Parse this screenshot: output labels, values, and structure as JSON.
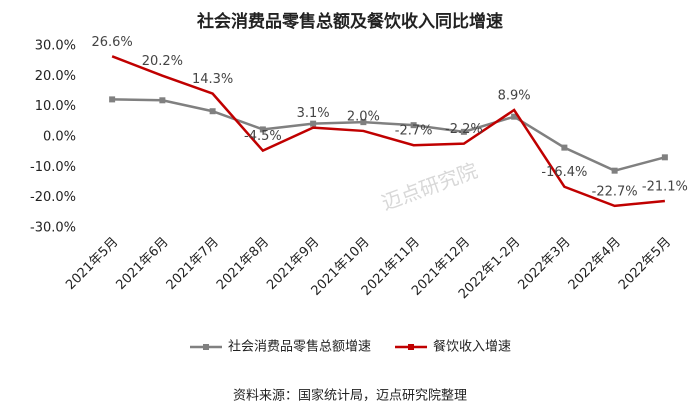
{
  "chart_data": {
    "type": "line",
    "title": "社会消费品零售总额及餐饮收入同比增速",
    "watermark": "迈点研究院",
    "source": "资料来源：国家统计局，迈点研究院整理",
    "categories": [
      "2021年5月",
      "2021年6月",
      "2021年7月",
      "2021年8月",
      "2021年9月",
      "2021年10月",
      "2021年11月",
      "2021年12月",
      "2022年1-2月",
      "2022年3月",
      "2022年4月",
      "2022年5月"
    ],
    "series": [
      {
        "name": "社会消费品零售总额增速",
        "color": "#808080",
        "markers": true,
        "values": [
          12.4,
          12.1,
          8.5,
          2.5,
          4.4,
          4.9,
          3.9,
          1.7,
          6.7,
          -3.5,
          -11.1,
          -6.7
        ]
      },
      {
        "name": "餐饮收入增速",
        "color": "#c00000",
        "markers": false,
        "values": [
          26.6,
          20.2,
          14.3,
          -4.5,
          3.1,
          2.0,
          -2.7,
          -2.2,
          8.9,
          -16.4,
          -22.7,
          -21.1
        ],
        "value_labels": [
          "26.6%",
          "20.2%",
          "14.3%",
          "-4.5%",
          "3.1%",
          "2.0%",
          "-2.7%",
          "-2.2%",
          "8.9%",
          "-16.4%",
          "-22.7%",
          "-21.1%"
        ]
      }
    ],
    "ylim": [
      -30,
      30
    ],
    "yticks": [
      {
        "value": -30,
        "label": "-30.0%"
      },
      {
        "value": -20,
        "label": "-20.0%"
      },
      {
        "value": -10,
        "label": "-10.0%"
      },
      {
        "value": 0,
        "label": "0.0%"
      },
      {
        "value": 10,
        "label": "10.0%"
      },
      {
        "value": 20,
        "label": "20.0%"
      },
      {
        "value": 30,
        "label": "30.0%"
      }
    ],
    "grid": false,
    "legend": "bottom"
  }
}
